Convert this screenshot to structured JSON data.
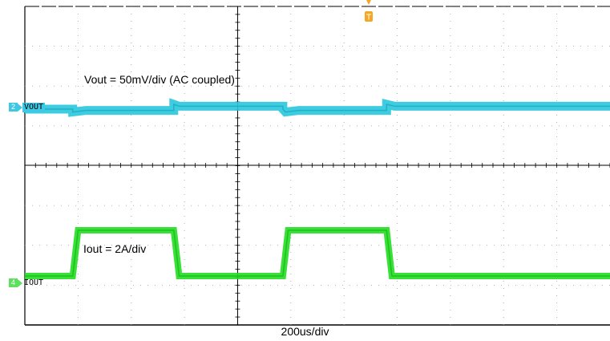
{
  "colors": {
    "vout_trace": "#29c6dd",
    "iout_trace": "#22dd22",
    "grid": "#000000",
    "trigger": "#f5a623"
  },
  "trigger": {
    "label": "T"
  },
  "channels": [
    {
      "number": "2",
      "label": "VOUT",
      "annotation": "Vout = 50mV/div (AC coupled)"
    },
    {
      "number": "4",
      "label": "IOUT",
      "annotation": "Iout = 2A/div"
    }
  ],
  "chart_data": {
    "type": "line",
    "title": "",
    "xlabel": "200us/div",
    "x_unit": "us",
    "xlim": [
      -800,
      1400
    ],
    "x_divisions": 11,
    "series": [
      {
        "name": "VOUT",
        "y_unit": "mV",
        "volts_per_div": "50mV/div",
        "values_note_ac": true,
        "points": [
          [
            -800,
            0
          ],
          [
            -620,
            0
          ],
          [
            -620,
            -9
          ],
          [
            -570,
            -4
          ],
          [
            -240,
            -4
          ],
          [
            -240,
            15
          ],
          [
            -220,
            9
          ],
          [
            170,
            9
          ],
          [
            170,
            0
          ],
          [
            180,
            -9
          ],
          [
            230,
            -4
          ],
          [
            560,
            -4
          ],
          [
            560,
            15
          ],
          [
            590,
            9
          ],
          [
            1400,
            9
          ]
        ]
      },
      {
        "name": "IOUT",
        "y_unit": "A",
        "amps_per_div": "2A/div",
        "points": [
          [
            -800,
            0
          ],
          [
            -620,
            0
          ],
          [
            -600,
            6
          ],
          [
            -240,
            6
          ],
          [
            -220,
            0
          ],
          [
            170,
            0
          ],
          [
            190,
            6
          ],
          [
            560,
            6
          ],
          [
            580,
            0
          ],
          [
            1400,
            0
          ]
        ]
      }
    ]
  }
}
